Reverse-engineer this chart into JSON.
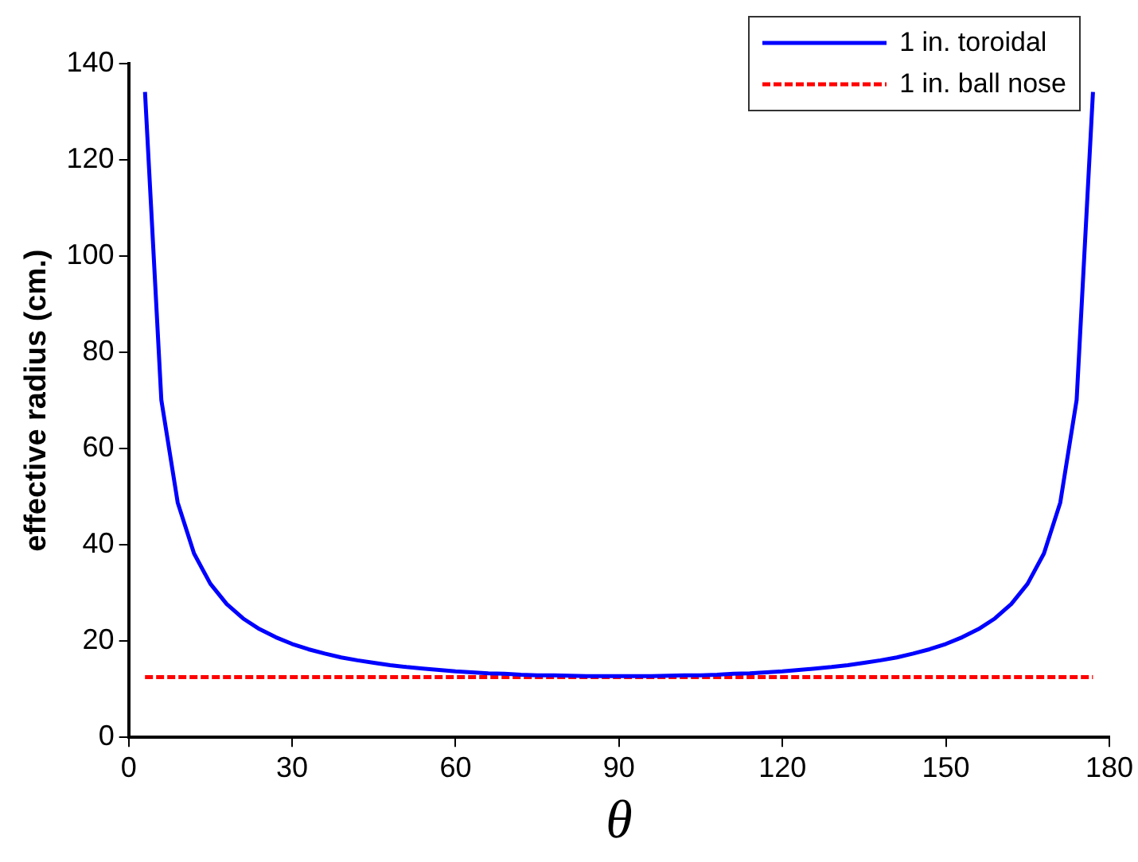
{
  "chart_data": {
    "type": "line",
    "xlabel": "θ",
    "ylabel": "effective radius (cm.)",
    "xlim": [
      0,
      180
    ],
    "xticks": [
      0,
      30,
      60,
      90,
      120,
      150,
      180
    ],
    "ylim": [
      0,
      140
    ],
    "yticks": [
      0,
      20,
      40,
      60,
      80,
      100,
      120,
      140
    ],
    "grid": false,
    "legend": "top right",
    "marker": "none",
    "x": [
      3,
      6,
      9,
      12,
      15,
      18,
      21,
      24,
      27,
      30,
      33,
      36,
      39,
      42,
      45,
      48,
      51,
      54,
      57,
      60,
      63,
      66,
      69,
      72,
      75,
      78,
      81,
      84,
      87,
      90,
      93,
      96,
      99,
      102,
      105,
      108,
      111,
      114,
      117,
      120,
      123,
      126,
      129,
      132,
      135,
      138,
      141,
      144,
      147,
      150,
      153,
      156,
      159,
      162,
      165,
      168,
      171,
      174,
      177
    ],
    "series": [
      {
        "name": "1 in. toroidal",
        "color": "#0000ff",
        "line_style": "solid",
        "values": [
          134.1,
          70.1,
          48.8,
          38.2,
          31.9,
          27.7,
          24.7,
          22.5,
          20.8,
          19.4,
          18.3,
          17.4,
          16.6,
          16.0,
          15.5,
          15.0,
          14.6,
          14.3,
          14.0,
          13.7,
          13.5,
          13.3,
          13.2,
          13.0,
          12.9,
          12.9,
          12.8,
          12.7,
          12.7,
          12.7,
          12.7,
          12.7,
          12.8,
          12.9,
          12.9,
          13.0,
          13.2,
          13.3,
          13.5,
          13.7,
          14.0,
          14.3,
          14.6,
          15.0,
          15.5,
          16.0,
          16.6,
          17.4,
          18.3,
          19.4,
          20.8,
          22.5,
          24.7,
          27.7,
          31.9,
          38.2,
          48.8,
          70.1,
          134.1
        ]
      },
      {
        "name": "1 in. ball nose",
        "color": "#ff0000",
        "line_style": "dashed",
        "x": [
          3,
          177
        ],
        "values": [
          12.5,
          12.5
        ]
      }
    ]
  }
}
